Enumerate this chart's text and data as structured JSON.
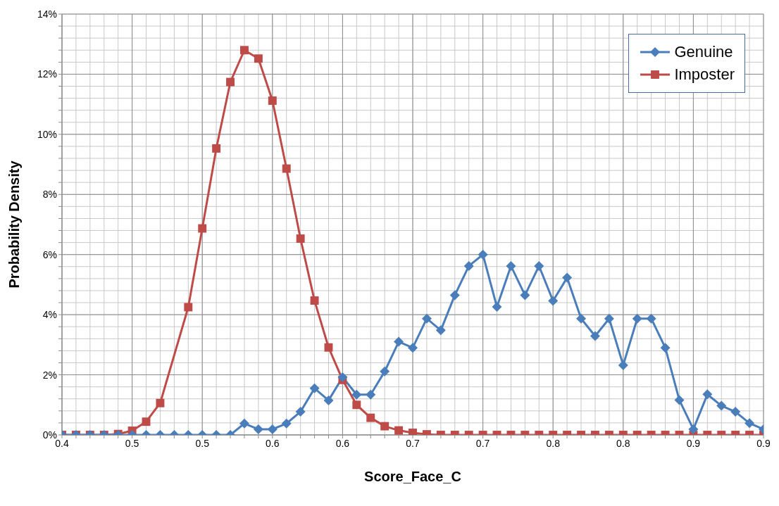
{
  "chart_data": {
    "type": "line",
    "xlabel": "Score_Face_C",
    "ylabel": "Probability Density",
    "x": [
      0.4,
      0.41,
      0.42,
      0.43,
      0.44,
      0.45,
      0.46,
      0.47,
      0.48,
      0.49,
      0.5,
      0.51,
      0.52,
      0.53,
      0.54,
      0.55,
      0.56,
      0.57,
      0.58,
      0.59,
      0.6,
      0.61,
      0.62,
      0.63,
      0.64,
      0.65,
      0.66,
      0.67,
      0.68,
      0.69,
      0.7,
      0.71,
      0.72,
      0.73,
      0.74,
      0.75,
      0.76,
      0.77,
      0.78,
      0.79,
      0.8,
      0.81,
      0.82,
      0.83,
      0.84,
      0.85,
      0.86,
      0.87,
      0.88,
      0.89,
      0.9
    ],
    "series": [
      {
        "name": "Genuine",
        "color": "#4a7ebb",
        "marker": "diamond",
        "values": [
          0,
          0,
          0,
          0,
          0,
          0,
          0,
          0,
          0,
          0,
          0,
          0,
          0,
          0.38,
          0.19,
          0.19,
          0.38,
          0.77,
          1.55,
          1.15,
          1.92,
          1.34,
          1.34,
          2.11,
          3.1,
          2.9,
          3.87,
          3.48,
          4.65,
          5.62,
          6.0,
          4.26,
          5.62,
          4.65,
          5.62,
          4.46,
          5.23,
          3.87,
          3.29,
          3.87,
          2.32,
          3.87,
          3.87,
          2.9,
          1.16,
          0.19,
          1.35,
          0.97,
          0.77,
          0.39,
          0.19
        ]
      },
      {
        "name": "Imposter",
        "color": "#be4b48",
        "marker": "square",
        "values": [
          0,
          0,
          0,
          0,
          0.03,
          0.14,
          0.44,
          1.06,
          null,
          4.25,
          6.87,
          9.53,
          11.74,
          12.8,
          12.52,
          11.12,
          8.86,
          6.53,
          4.47,
          2.91,
          1.83,
          1.0,
          0.57,
          0.29,
          0.15,
          0.07,
          0.02,
          0,
          0,
          0,
          0,
          0,
          0,
          0,
          0,
          0,
          0,
          0,
          0,
          0,
          0,
          0,
          0,
          0,
          0,
          0,
          0,
          0,
          0,
          0,
          0
        ]
      }
    ],
    "xlim": [
      0.4,
      0.9
    ],
    "xticks": [
      {
        "value": 0.4,
        "label": "0.4"
      },
      {
        "value": 0.41,
        "label": null
      },
      {
        "value": 0.42,
        "label": null
      },
      {
        "value": 0.43,
        "label": null
      },
      {
        "value": 0.44,
        "label": null
      },
      {
        "value": 0.45,
        "label": "0.5"
      },
      {
        "value": 0.46,
        "label": null
      },
      {
        "value": 0.47,
        "label": null
      },
      {
        "value": 0.48,
        "label": null
      },
      {
        "value": 0.49,
        "label": null
      },
      {
        "value": 0.5,
        "label": "0.5"
      },
      {
        "value": 0.51,
        "label": null
      },
      {
        "value": 0.52,
        "label": null
      },
      {
        "value": 0.53,
        "label": null
      },
      {
        "value": 0.54,
        "label": null
      },
      {
        "value": 0.55,
        "label": "0.6"
      },
      {
        "value": 0.56,
        "label": null
      },
      {
        "value": 0.57,
        "label": null
      },
      {
        "value": 0.58,
        "label": null
      },
      {
        "value": 0.59,
        "label": null
      },
      {
        "value": 0.6,
        "label": "0.6"
      },
      {
        "value": 0.61,
        "label": null
      },
      {
        "value": 0.62,
        "label": null
      },
      {
        "value": 0.63,
        "label": null
      },
      {
        "value": 0.64,
        "label": null
      },
      {
        "value": 0.65,
        "label": "0.7"
      },
      {
        "value": 0.66,
        "label": null
      },
      {
        "value": 0.67,
        "label": null
      },
      {
        "value": 0.68,
        "label": null
      },
      {
        "value": 0.69,
        "label": null
      },
      {
        "value": 0.7,
        "label": "0.7"
      },
      {
        "value": 0.71,
        "label": null
      },
      {
        "value": 0.72,
        "label": null
      },
      {
        "value": 0.73,
        "label": null
      },
      {
        "value": 0.74,
        "label": null
      },
      {
        "value": 0.75,
        "label": "0.8"
      },
      {
        "value": 0.76,
        "label": null
      },
      {
        "value": 0.77,
        "label": null
      },
      {
        "value": 0.78,
        "label": null
      },
      {
        "value": 0.79,
        "label": null
      },
      {
        "value": 0.8,
        "label": "0.8"
      },
      {
        "value": 0.81,
        "label": null
      },
      {
        "value": 0.82,
        "label": null
      },
      {
        "value": 0.83,
        "label": null
      },
      {
        "value": 0.84,
        "label": null
      },
      {
        "value": 0.85,
        "label": "0.9"
      },
      {
        "value": 0.86,
        "label": null
      },
      {
        "value": 0.87,
        "label": null
      },
      {
        "value": 0.88,
        "label": null
      },
      {
        "value": 0.89,
        "label": null
      },
      {
        "value": 0.9,
        "label": "0.9"
      }
    ],
    "ylim": [
      0,
      14
    ],
    "yticks": [
      {
        "value": 0,
        "label": "0%"
      },
      {
        "value": 0.4,
        "label": null
      },
      {
        "value": 0.8,
        "label": null
      },
      {
        "value": 1.2,
        "label": null
      },
      {
        "value": 1.6,
        "label": null
      },
      {
        "value": 2,
        "label": "2%"
      },
      {
        "value": 2.4,
        "label": null
      },
      {
        "value": 2.8,
        "label": null
      },
      {
        "value": 3.2,
        "label": null
      },
      {
        "value": 3.6,
        "label": null
      },
      {
        "value": 4,
        "label": "4%"
      },
      {
        "value": 4.4,
        "label": null
      },
      {
        "value": 4.8,
        "label": null
      },
      {
        "value": 5.2,
        "label": null
      },
      {
        "value": 5.6,
        "label": null
      },
      {
        "value": 6,
        "label": "6%"
      },
      {
        "value": 6.4,
        "label": null
      },
      {
        "value": 6.8,
        "label": null
      },
      {
        "value": 7.2,
        "label": null
      },
      {
        "value": 7.6,
        "label": null
      },
      {
        "value": 8,
        "label": "8%"
      },
      {
        "value": 8.4,
        "label": null
      },
      {
        "value": 8.8,
        "label": null
      },
      {
        "value": 9.2,
        "label": null
      },
      {
        "value": 9.6,
        "label": null
      },
      {
        "value": 10,
        "label": "10%"
      },
      {
        "value": 10.4,
        "label": null
      },
      {
        "value": 10.8,
        "label": null
      },
      {
        "value": 11.2,
        "label": null
      },
      {
        "value": 11.6,
        "label": null
      },
      {
        "value": 12,
        "label": "12%"
      },
      {
        "value": 12.4,
        "label": null
      },
      {
        "value": 12.8,
        "label": null
      },
      {
        "value": 13.2,
        "label": null
      },
      {
        "value": 13.6,
        "label": null
      },
      {
        "value": 14,
        "label": "14%"
      }
    ],
    "grid": true,
    "legend": "top right"
  }
}
